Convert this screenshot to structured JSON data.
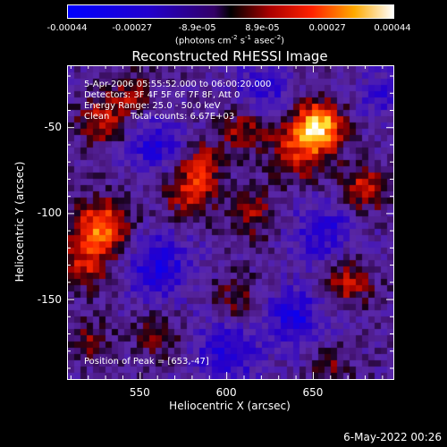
{
  "chart_data": {
    "type": "heatmap",
    "title": "Reconstructed RHESSI Image",
    "xlabel": "Heliocentric X (arcsec)",
    "ylabel": "Heliocentric Y (arcsec)",
    "x_ticks": [
      "550",
      "600",
      "650"
    ],
    "x_tick_values": [
      550,
      600,
      650
    ],
    "y_ticks": [
      "-50",
      "-100",
      "-150"
    ],
    "y_tick_values": [
      -50,
      -100,
      -150
    ],
    "xlim": [
      508,
      696
    ],
    "ylim": [
      -196,
      -14
    ],
    "colorbar": {
      "ticks": [
        "-0.00044",
        "-0.00027",
        "-8.9e-05",
        "8.9e-05",
        "0.00027",
        "0.00044"
      ],
      "range": [
        -0.00044,
        0.00044
      ],
      "unit_prefix": "(photons cm",
      "unit_exp1": "-2",
      "unit_mid": " s",
      "unit_exp2": "-1",
      "unit_mid2": " asec",
      "unit_exp3": "-2",
      "unit_suffix": ")"
    },
    "annotations": {
      "time_range": "5-Apr-2006 05:55:52.000 to 06:00:20.000",
      "detectors": "Detectors: 3F 4F 5F 6F 7F 8F, Att 0",
      "energy": "Energy Range: 25.0 - 50.0 keV",
      "method": "Clean",
      "counts": "Total counts: 6.67E+03",
      "peak": "Position of Peak = [653,-47]"
    },
    "peak_xy": [
      653,
      -47
    ],
    "blobs": [
      {
        "x": 653,
        "y": -48,
        "amp": 1.0,
        "s": 9
      },
      {
        "x": 643,
        "y": -62,
        "amp": 0.6,
        "s": 12
      },
      {
        "x": 528,
        "y": -108,
        "amp": 0.85,
        "s": 11
      },
      {
        "x": 518,
        "y": -130,
        "amp": 0.45,
        "s": 10
      },
      {
        "x": 578,
        "y": -88,
        "amp": 0.55,
        "s": 10
      },
      {
        "x": 585,
        "y": -70,
        "amp": 0.5,
        "s": 9
      },
      {
        "x": 528,
        "y": -45,
        "amp": 0.55,
        "s": 9
      },
      {
        "x": 545,
        "y": -30,
        "amp": 0.4,
        "s": 8
      },
      {
        "x": 610,
        "y": -50,
        "amp": 0.45,
        "s": 10
      },
      {
        "x": 615,
        "y": -100,
        "amp": 0.4,
        "s": 9
      },
      {
        "x": 670,
        "y": -140,
        "amp": 0.5,
        "s": 9
      },
      {
        "x": 680,
        "y": -85,
        "amp": 0.55,
        "s": 9
      },
      {
        "x": 605,
        "y": -150,
        "amp": 0.35,
        "s": 9
      },
      {
        "x": 560,
        "y": -170,
        "amp": 0.3,
        "s": 9
      },
      {
        "x": 520,
        "y": -175,
        "amp": 0.35,
        "s": 8
      },
      {
        "x": 660,
        "y": -190,
        "amp": 0.3,
        "s": 8
      },
      {
        "x": 655,
        "y": -110,
        "amp": -0.45,
        "s": 12
      },
      {
        "x": 560,
        "y": -130,
        "amp": -0.5,
        "s": 14
      },
      {
        "x": 600,
        "y": -180,
        "amp": -0.45,
        "s": 14
      },
      {
        "x": 640,
        "y": -160,
        "amp": -0.5,
        "s": 12
      },
      {
        "x": 560,
        "y": -60,
        "amp": -0.45,
        "s": 12
      },
      {
        "x": 620,
        "y": -30,
        "amp": -0.4,
        "s": 12
      },
      {
        "x": 690,
        "y": -30,
        "amp": -0.35,
        "s": 10
      }
    ]
  },
  "timestamp": "6-May-2022 00:26"
}
